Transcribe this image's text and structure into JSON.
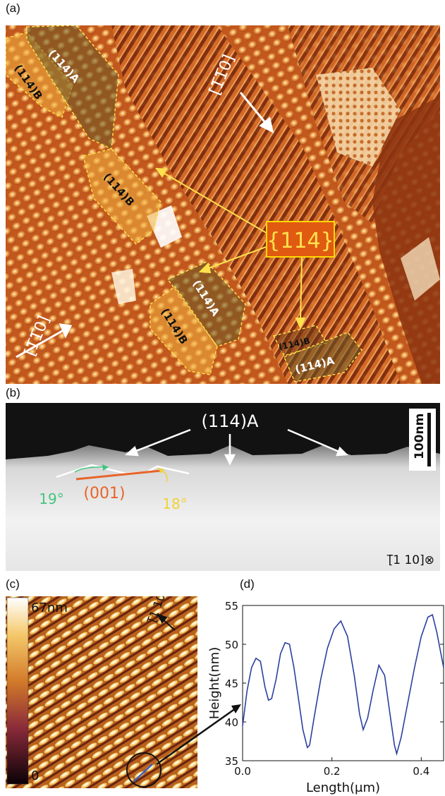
{
  "panels": {
    "a": "(a)",
    "b": "(b)",
    "c": "(c)",
    "d": "(d)"
  },
  "panel_a": {
    "regions": [
      {
        "label": "(114)B"
      },
      {
        "label": "(114)A"
      },
      {
        "label": "(114)B"
      },
      {
        "label": "(114)A"
      },
      {
        "label": "(114)B"
      },
      {
        "label": "(114)B"
      },
      {
        "label": "(114)A"
      }
    ],
    "facet_family": "{114}",
    "direction_top": "[1̅1̅0]",
    "direction_bottom": "[1̅1̅0]",
    "colors": {
      "surface": "#c2571f",
      "highlight": "#ffd36a",
      "box_outline": "#ffe14d",
      "family_box": "#e05a12",
      "family_box_border": "#ffd800"
    }
  },
  "panel_b": {
    "facet_label": "(114)A",
    "scale_bar": "100nm",
    "plane_label": "(001)",
    "angle_left": "19°",
    "angle_right": "18°",
    "view_direction": "[̅1 10]⊗",
    "colors": {
      "plane": "#e8642a",
      "angle_left": "#43c47f",
      "angle_right": "#f0d23c"
    }
  },
  "panel_c": {
    "colorbar_max": "67nm",
    "colorbar_min": "0",
    "direction": "[̅1 10]"
  },
  "chart_data": {
    "type": "line",
    "xlabel": "Length(μm)",
    "ylabel": "Height(nm)",
    "xlim": [
      0.0,
      0.45
    ],
    "ylim": [
      35,
      55
    ],
    "xticks": [
      "0.0",
      "0.2",
      "0.4"
    ],
    "yticks": [
      "35",
      "40",
      "45",
      "50",
      "55"
    ],
    "series": [
      {
        "color": "#2b3fa0",
        "x": [
          0.0,
          0.01,
          0.02,
          0.03,
          0.04,
          0.05,
          0.058,
          0.065,
          0.075,
          0.085,
          0.095,
          0.105,
          0.115,
          0.125,
          0.135,
          0.145,
          0.15,
          0.16,
          0.175,
          0.19,
          0.205,
          0.22,
          0.235,
          0.25,
          0.262,
          0.27,
          0.28,
          0.292,
          0.305,
          0.318,
          0.33,
          0.34,
          0.345,
          0.355,
          0.37,
          0.385,
          0.4,
          0.415,
          0.425,
          0.435,
          0.45
        ],
        "y": [
          39.5,
          44.0,
          47.0,
          48.2,
          47.8,
          44.5,
          42.8,
          43.0,
          45.5,
          48.8,
          50.2,
          50.0,
          47.0,
          43.0,
          39.0,
          36.7,
          37.0,
          40.5,
          45.5,
          49.5,
          52.0,
          53.0,
          51.0,
          46.0,
          41.0,
          39.0,
          40.5,
          44.0,
          47.3,
          46.0,
          41.0,
          37.0,
          35.9,
          38.0,
          42.5,
          47.0,
          51.0,
          53.5,
          53.8,
          51.5,
          47.0
        ]
      }
    ]
  }
}
